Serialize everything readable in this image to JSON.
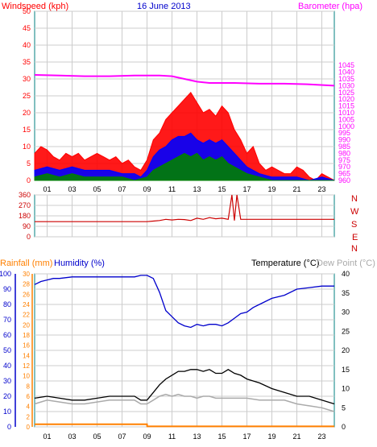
{
  "header": {
    "windspeed_label": "Windspeed (kph)",
    "date": "16 June 2013",
    "barometer_label": "Barometer (hpa)"
  },
  "bottom_header": {
    "rainfall_label": "Rainfall (mm)",
    "humidity_label": "Humidity (%)",
    "temperature_label": "Temperature (°C)",
    "dewpoint_label": "Dew Point (°C)"
  },
  "compass": [
    "N",
    "W",
    "S",
    "E",
    "N"
  ],
  "colors": {
    "windspeed": "#ff0000",
    "barometer": "#ff00ff",
    "wind_avg": "#0000ff",
    "wind_low": "#008000",
    "direction": "#cc0000",
    "humidity": "#0000cc",
    "temperature": "#000000",
    "dewpoint": "#aaaaaa",
    "rainfall": "#ff8000",
    "grid": "#cccccc",
    "axis": "#008080"
  },
  "chart_data": [
    {
      "type": "line",
      "title": "16 June 2013",
      "ylabel": "Windspeed (kph)",
      "y2label": "Barometer (hpa)",
      "ylim": [
        0,
        50
      ],
      "y2lim": [
        960,
        1085
      ],
      "xlim": [
        0,
        24
      ],
      "x_ticks": [
        "01",
        "03",
        "05",
        "07",
        "09",
        "11",
        "13",
        "15",
        "17",
        "19",
        "21",
        "23"
      ],
      "y_ticks": [
        0,
        5,
        10,
        15,
        20,
        25,
        30,
        35,
        40,
        45,
        50
      ],
      "y2_ticks": [
        960,
        965,
        970,
        975,
        980,
        985,
        990,
        995,
        1000,
        1005,
        1010,
        1015,
        1020,
        1025,
        1030,
        1035,
        1040,
        1045
      ],
      "series": [
        {
          "name": "Windspeed",
          "axis": "y",
          "style": "gust",
          "x": [
            0,
            0.5,
            1,
            1.5,
            2,
            2.5,
            3,
            3.5,
            4,
            4.5,
            5,
            5.5,
            6,
            6.5,
            7,
            7.5,
            8,
            8.5,
            9,
            9.5,
            10,
            10.5,
            11,
            11.5,
            12,
            12.5,
            13,
            13.5,
            14,
            14.5,
            15,
            15.5,
            16,
            16.5,
            17,
            17.5,
            18,
            18.5,
            19,
            19.5,
            20,
            20.5,
            21,
            21.5,
            22,
            22.5,
            23,
            23.5,
            24
          ],
          "values": [
            8,
            10,
            9,
            7,
            6,
            8,
            7,
            8,
            6,
            7,
            8,
            7,
            6,
            7,
            5,
            6,
            4,
            3,
            6,
            12,
            14,
            18,
            20,
            22,
            24,
            26,
            23,
            20,
            21,
            19,
            22,
            20,
            15,
            12,
            8,
            10,
            5,
            3,
            4,
            3,
            2,
            2,
            4,
            3,
            1,
            0,
            2,
            1,
            0
          ]
        },
        {
          "name": "Average",
          "axis": "y",
          "style": "fill",
          "x": [
            0,
            1,
            2,
            3,
            4,
            5,
            6,
            7,
            8,
            8.5,
            9,
            9.5,
            10,
            10.5,
            11,
            11.5,
            12,
            12.5,
            13,
            13.5,
            14,
            14.5,
            15,
            15.5,
            16,
            16.5,
            17,
            17.5,
            18,
            19,
            20,
            21,
            22,
            23,
            24
          ],
          "values": [
            3,
            4,
            3,
            4,
            3,
            3,
            3,
            2,
            2,
            1,
            3,
            7,
            9,
            10,
            12,
            13,
            13,
            14,
            12,
            11,
            12,
            11,
            12,
            10,
            8,
            6,
            4,
            3,
            2,
            1,
            1,
            1,
            0,
            1,
            0
          ]
        },
        {
          "name": "Low",
          "axis": "y",
          "style": "fill",
          "x": [
            0,
            1,
            2,
            3,
            4,
            5,
            6,
            7,
            8,
            9,
            9.5,
            10,
            10.5,
            11,
            11.5,
            12,
            12.5,
            13,
            13.5,
            14,
            14.5,
            15,
            15.5,
            16,
            16.5,
            17,
            18,
            19,
            20,
            21,
            22,
            23,
            24
          ],
          "values": [
            1,
            2,
            1,
            2,
            1,
            1,
            1,
            1,
            0,
            1,
            3,
            4,
            5,
            6,
            7,
            8,
            7,
            8,
            6,
            7,
            6,
            7,
            5,
            4,
            3,
            2,
            1,
            0,
            0,
            0,
            0,
            0,
            0
          ]
        },
        {
          "name": "Barometer",
          "axis": "y2",
          "style": "line",
          "x": [
            0,
            2,
            4,
            6,
            8,
            10,
            11,
            12,
            13,
            14,
            16,
            18,
            20,
            22,
            24
          ],
          "values": [
            1038,
            1037.5,
            1037,
            1037,
            1037.5,
            1037.5,
            1037,
            1035,
            1033,
            1032,
            1032,
            1031.5,
            1031.5,
            1031,
            1030
          ]
        }
      ]
    },
    {
      "type": "line",
      "ylim": [
        0,
        360
      ],
      "xlim": [
        0,
        24
      ],
      "y_ticks": [
        0,
        90,
        180,
        270,
        360
      ],
      "series": [
        {
          "name": "Direction",
          "x": [
            0,
            2,
            4,
            6,
            8,
            9,
            9.5,
            10,
            10.5,
            11,
            11.5,
            12,
            12.5,
            13,
            13.5,
            14,
            14.5,
            15,
            15.5,
            15.8,
            16,
            16.2,
            16.5,
            17,
            18,
            20,
            22,
            24
          ],
          "values": [
            130,
            130,
            130,
            130,
            130,
            130,
            135,
            140,
            150,
            145,
            150,
            148,
            140,
            160,
            150,
            165,
            155,
            160,
            150,
            360,
            140,
            360,
            150,
            150,
            150,
            150,
            150,
            150
          ]
        }
      ]
    },
    {
      "type": "line",
      "xlim": [
        0,
        24
      ],
      "y_humidity": [
        0,
        100
      ],
      "y_rain": [
        0,
        30
      ],
      "y_temp": [
        0,
        40
      ],
      "humidity_ticks": [
        0,
        10,
        20,
        30,
        40,
        50,
        60,
        70,
        80,
        90,
        100
      ],
      "rain_ticks": [
        0,
        2,
        4,
        6,
        8,
        10,
        12,
        14,
        16,
        18,
        20,
        22,
        24,
        26,
        28,
        30
      ],
      "temp_ticks": [
        0,
        5,
        10,
        15,
        20,
        25,
        30,
        35,
        40
      ],
      "series": [
        {
          "name": "Humidity",
          "axis": "humidity",
          "x": [
            0,
            0.5,
            1,
            1.5,
            2,
            3,
            4,
            5,
            6,
            7,
            8,
            8.5,
            9,
            9.5,
            10,
            10.5,
            11,
            11.5,
            12,
            12.5,
            13,
            13.5,
            14,
            14.5,
            15,
            15.5,
            16,
            16.5,
            17,
            17.5,
            18,
            19,
            20,
            21,
            22,
            23,
            24
          ],
          "values": [
            93,
            95,
            96,
            97,
            97,
            98,
            98,
            98,
            98,
            98,
            98,
            99,
            99,
            97,
            88,
            76,
            72,
            68,
            66,
            65,
            67,
            66,
            67,
            67,
            66,
            68,
            71,
            74,
            75,
            78,
            80,
            84,
            86,
            90,
            91,
            92,
            92
          ]
        },
        {
          "name": "Temperature",
          "axis": "temp",
          "x": [
            0,
            1,
            2,
            3,
            4,
            5,
            6,
            7,
            8,
            8.5,
            9,
            9.5,
            10,
            10.5,
            11,
            11.5,
            12,
            12.5,
            13,
            13.5,
            14,
            14.5,
            15,
            15.5,
            16,
            16.5,
            17,
            18,
            19,
            20,
            21,
            22,
            23,
            24
          ],
          "values": [
            7.5,
            8,
            7.5,
            7,
            7,
            7.5,
            8,
            8,
            8,
            7,
            7,
            9,
            11,
            12.5,
            13.5,
            14.5,
            14.5,
            15,
            15,
            14.5,
            15,
            14,
            14,
            15,
            14,
            13.5,
            12.5,
            11.5,
            10,
            9,
            8,
            8,
            7,
            6
          ]
        },
        {
          "name": "Dew Point",
          "axis": "temp",
          "x": [
            0,
            1,
            2,
            3,
            4,
            5,
            6,
            7,
            8,
            8.5,
            9,
            9.5,
            10,
            10.5,
            11,
            11.5,
            12,
            12.5,
            13,
            13.5,
            14,
            14.5,
            15,
            16,
            17,
            18,
            19,
            20,
            21,
            22,
            23,
            24
          ],
          "values": [
            6,
            7,
            6.5,
            6,
            6,
            6.5,
            7,
            7,
            7,
            6,
            6,
            7,
            8,
            8.5,
            8,
            8.5,
            8,
            8,
            7.5,
            8,
            8,
            7.5,
            7.5,
            7.5,
            7.5,
            7,
            7,
            7,
            6,
            5.5,
            5,
            4
          ]
        },
        {
          "name": "Rainfall",
          "axis": "rain",
          "x": [
            0,
            9,
            9.01,
            24
          ],
          "values": [
            0.5,
            0.5,
            0.1,
            0.1
          ]
        }
      ]
    }
  ]
}
